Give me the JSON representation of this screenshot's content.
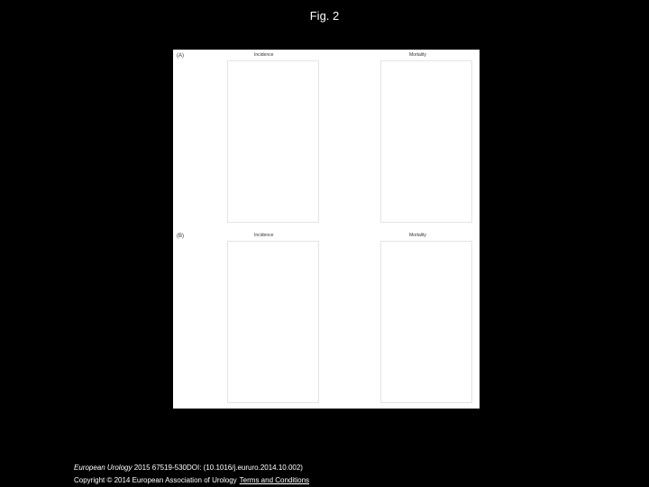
{
  "header": {
    "title": "Fig. 2"
  },
  "figure": {
    "panels": [
      {
        "label": "(A)",
        "left_title": "Incidence",
        "right_title": "Mortality"
      },
      {
        "label": "(B)",
        "left_title": "Incidence",
        "right_title": "Mortality"
      }
    ]
  },
  "caption": {
    "journal": "European Urology",
    "citation": "2015 67519-530DOI: (10.1016/j.eururo.2014.10.002)",
    "copyright": "Copyright © 2014 European Association of Urology",
    "link": "Terms and Conditions"
  }
}
